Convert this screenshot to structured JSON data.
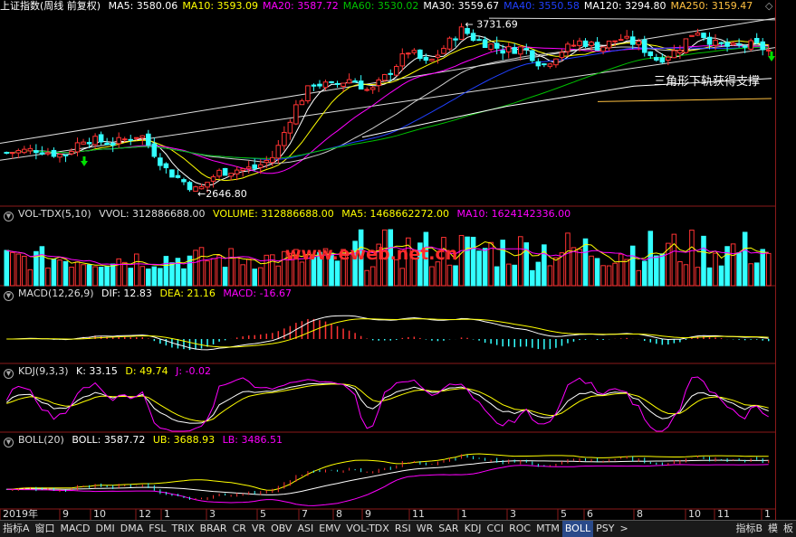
{
  "main": {
    "title": "上证指数(周线 前复权)",
    "ma": [
      {
        "label": "MA5: 3580.06",
        "color": "#ffffff"
      },
      {
        "label": "MA10: 3593.09",
        "color": "#ffff00"
      },
      {
        "label": "MA20: 3587.72",
        "color": "#ff00ff"
      },
      {
        "label": "MA60: 3530.02",
        "color": "#00c000"
      },
      {
        "label": "MA30: 3559.67",
        "color": "#ffffff"
      },
      {
        "label": "MA40: 3550.58",
        "color": "#2040ff"
      },
      {
        "label": "MA120: 3294.80",
        "color": "#ffffff"
      },
      {
        "label": "MA250: 3159.47",
        "color": "#ffc040"
      }
    ],
    "high_label": "3731.69",
    "low_label": "2646.80",
    "annotation": "三角形下轨获得支撑",
    "diamond": "◇"
  },
  "volume": {
    "title": "VOL-TDX(5,10)",
    "vvol": "VVOL: 312886688.00",
    "volume": "VOLUME: 312886688.00",
    "ma5": "MA5: 1468662272.00",
    "ma10": "MA10: 1624142336.00",
    "watermark": "www.eweb.net.cn"
  },
  "macd": {
    "title": "MACD(12,26,9)",
    "dif": "DIF: 12.83",
    "dea": "DEA: 21.16",
    "macd": "MACD: -16.67"
  },
  "kdj": {
    "title": "KDJ(9,3,3)",
    "k": "K: 33.15",
    "d": "D: 49.74",
    "j": "J: -0.02"
  },
  "boll": {
    "title": "BOLL(20)",
    "boll": "BOLL: 3587.72",
    "ub": "UB: 3688.93",
    "lb": "LB: 3486.51"
  },
  "time_axis": [
    "2019年",
    "9",
    "10",
    "12",
    "1",
    "3",
    "5",
    "7",
    "8",
    "9",
    "11",
    "1",
    "3",
    "5",
    "6",
    "8",
    "10",
    "11",
    "1"
  ],
  "tabs": [
    "指标A",
    "窗口",
    "MACD",
    "DMI",
    "DMA",
    "FSL",
    "TRIX",
    "BRAR",
    "CR",
    "VR",
    "OBV",
    "ASI",
    "EMV",
    "VOL-TDX",
    "RSI",
    "WR",
    "SAR",
    "KDJ",
    "CCI",
    "ROC",
    "MTM",
    "BOLL",
    "PSY",
    ">",
    "指标B",
    "模",
    "板"
  ],
  "active_tab": "BOLL",
  "chart_data": {
    "type": "candlestick",
    "title": "上证指数(周线 前复权)",
    "high": 3731.69,
    "low": 2646.8,
    "ylim": [
      2600,
      3800
    ],
    "n_bars": 130,
    "close_path": [
      [
        0,
        2900
      ],
      [
        8,
        2920
      ],
      [
        15,
        2880
      ],
      [
        20,
        2990
      ],
      [
        28,
        2960
      ],
      [
        35,
        3020
      ],
      [
        42,
        2780
      ],
      [
        47,
        2700
      ],
      [
        50,
        2650
      ],
      [
        55,
        2770
      ],
      [
        60,
        2790
      ],
      [
        65,
        2800
      ],
      [
        70,
        2880
      ],
      [
        75,
        3180
      ],
      [
        80,
        3350
      ],
      [
        85,
        3330
      ],
      [
        90,
        3380
      ],
      [
        95,
        3290
      ],
      [
        100,
        3420
      ],
      [
        105,
        3560
      ],
      [
        110,
        3470
      ],
      [
        115,
        3600
      ],
      [
        119,
        3700
      ],
      [
        122,
        3640
      ],
      [
        126,
        3600
      ],
      [
        130,
        3560
      ],
      [
        135,
        3580
      ],
      [
        140,
        3460
      ],
      [
        145,
        3560
      ],
      [
        150,
        3620
      ],
      [
        155,
        3580
      ],
      [
        160,
        3640
      ],
      [
        165,
        3600
      ],
      [
        170,
        3500
      ],
      [
        175,
        3560
      ],
      [
        180,
        3700
      ],
      [
        185,
        3600
      ],
      [
        190,
        3580
      ],
      [
        195,
        3600
      ],
      [
        199,
        3560
      ]
    ],
    "series": [
      {
        "name": "MA5",
        "value": 3580.06
      },
      {
        "name": "MA10",
        "value": 3593.09
      },
      {
        "name": "MA20",
        "value": 3587.72
      },
      {
        "name": "MA60",
        "value": 3530.02
      },
      {
        "name": "MA30",
        "value": 3559.67
      },
      {
        "name": "MA40",
        "value": 3550.58
      },
      {
        "name": "MA120",
        "value": 3294.8
      },
      {
        "name": "MA250",
        "value": 3159.47
      }
    ],
    "indicators": {
      "VOLUME": 312886688.0,
      "VOL_MA5": 1468662272.0,
      "VOL_MA10": 1624142336.0,
      "DIF": 12.83,
      "DEA": 21.16,
      "MACD": -16.67,
      "K": 33.15,
      "D": 49.74,
      "J": -0.02,
      "BOLL": 3587.72,
      "UB": 3688.93,
      "LB": 3486.51
    }
  }
}
